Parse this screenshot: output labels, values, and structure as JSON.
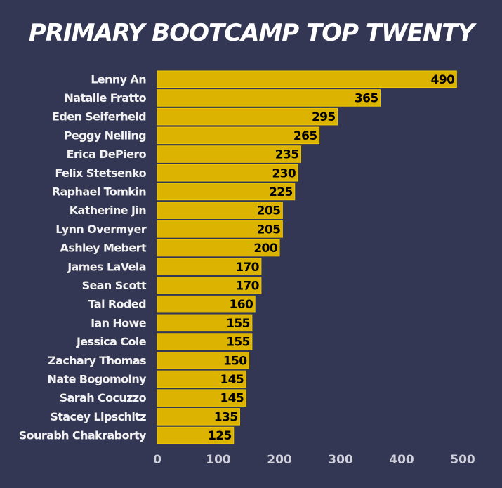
{
  "chart_data": {
    "type": "bar",
    "orientation": "horizontal",
    "title": "PRIMARY BOOTCAMP TOP TWENTY",
    "xlabel": "",
    "ylabel": "",
    "categories": [
      "Lenny An",
      "Natalie Fratto",
      "Eden Seiferheld",
      "Peggy Nelling",
      "Erica DePiero",
      "Felix Stetsenko",
      "Raphael Tomkin",
      "Katherine Jin",
      "Lynn Overmyer",
      "Ashley Mebert",
      "James LaVela",
      "Sean Scott",
      "Tal Roded",
      "Ian Howe",
      "Jessica Cole",
      "Zachary Thomas",
      "Nate Bogomolny",
      "Sarah Cocuzzo",
      "Stacey Lipschitz",
      "Sourabh Chakraborty"
    ],
    "values": [
      490,
      365,
      295,
      265,
      235,
      230,
      225,
      205,
      205,
      200,
      170,
      170,
      160,
      155,
      155,
      150,
      145,
      145,
      135,
      125
    ],
    "xlim": [
      0,
      500
    ],
    "xticks": [
      "0",
      "100",
      "200",
      "300",
      "400",
      "500"
    ],
    "grid": false,
    "legend": "none",
    "colors": {
      "background": "#343753",
      "bar": "#dcb300",
      "title": "#ffffff",
      "category_text": "#f2f2f2",
      "value_text": "#000000",
      "tick_text": "#cfd0dc"
    }
  }
}
